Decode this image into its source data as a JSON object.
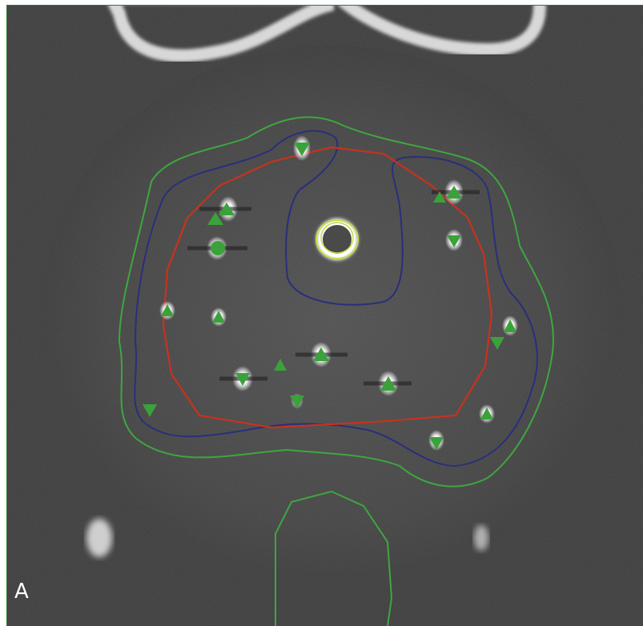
{
  "panel": {
    "label": "A"
  },
  "colors": {
    "contour_green": "#3fa63f",
    "contour_blue": "#2a2f7a",
    "contour_red": "#c8321e",
    "marker_green": "#3aa23a",
    "catheter_ring": "#c6d94a",
    "background": "#3a3a3a"
  },
  "markers": [
    {
      "shape": "triangle-down"
    },
    {
      "shape": "triangle-up"
    },
    {
      "shape": "triangle-up"
    },
    {
      "shape": "circle"
    },
    {
      "shape": "triangle-up"
    },
    {
      "shape": "triangle-up"
    },
    {
      "shape": "triangle-down"
    },
    {
      "shape": "triangle-up"
    },
    {
      "shape": "triangle-up"
    },
    {
      "shape": "triangle-up"
    },
    {
      "shape": "triangle-up"
    },
    {
      "shape": "triangle-down"
    },
    {
      "shape": "triangle-down"
    },
    {
      "shape": "triangle-up"
    },
    {
      "shape": "triangle-down"
    },
    {
      "shape": "triangle-down"
    },
    {
      "shape": "triangle-down"
    },
    {
      "shape": "triangle-up"
    },
    {
      "shape": "triangle-up"
    }
  ]
}
